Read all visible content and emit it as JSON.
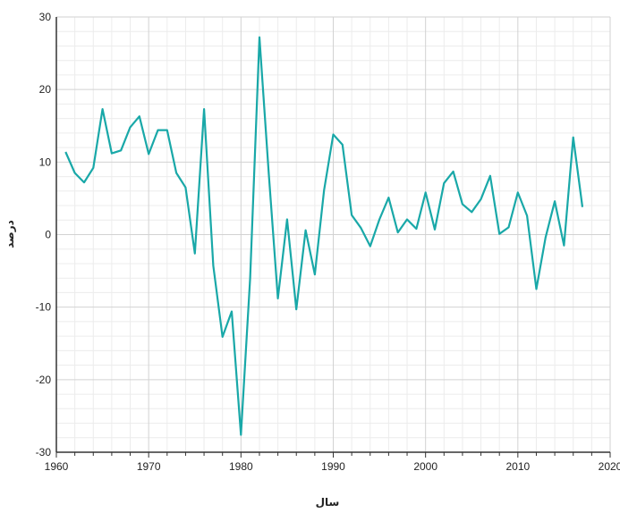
{
  "chart_data": {
    "type": "line",
    "title": "",
    "xlabel": "سال",
    "ylabel": "درصد",
    "xlim": [
      1960,
      2020
    ],
    "ylim": [
      -30,
      30
    ],
    "x_ticks": [
      1960,
      1970,
      1980,
      1990,
      2000,
      2010,
      2020
    ],
    "y_ticks": [
      -30,
      -20,
      -10,
      0,
      10,
      20,
      30
    ],
    "x_tick_labels": [
      "1960",
      "1970",
      "1980",
      "1990",
      "2000",
      "2010",
      "2020"
    ],
    "y_tick_labels": [
      "-30",
      "-20",
      "-10",
      "0",
      "10",
      "20",
      "30"
    ],
    "grid": true,
    "legend": "none",
    "colors": {
      "line": "#19a8a8",
      "grid_major": "#d2d2d2",
      "grid_minor": "#ececec",
      "axis": "#333333"
    },
    "series": [
      {
        "x": [
          1961,
          1962,
          1963,
          1964,
          1965,
          1966,
          1967,
          1968,
          1969,
          1970,
          1971,
          1972,
          1973,
          1974,
          1975,
          1976,
          1977,
          1978,
          1979,
          1980,
          1981,
          1982,
          1983,
          1984,
          1985,
          1986,
          1987,
          1988,
          1989,
          1990,
          1991,
          1992,
          1993,
          1994,
          1995,
          1996,
          1997,
          1998,
          1999,
          2000,
          2001,
          2002,
          2003,
          2004,
          2005,
          2006,
          2007,
          2008,
          2009,
          2010,
          2011,
          2012,
          2013,
          2014,
          2015,
          2016,
          2017
        ],
        "values": [
          11.4,
          8.5,
          7.2,
          9.2,
          17.3,
          11.2,
          11.6,
          14.8,
          16.3,
          11.1,
          14.4,
          14.4,
          8.5,
          6.5,
          -2.6,
          17.3,
          -4.3,
          -14.1,
          -10.6,
          -27.6,
          -6.0,
          27.2,
          8.6,
          -8.8,
          2.1,
          -10.3,
          0.6,
          -5.5,
          6.1,
          13.8,
          12.4,
          2.7,
          0.9,
          -1.6,
          2.1,
          5.1,
          0.3,
          2.1,
          0.8,
          5.8,
          0.7,
          7.1,
          8.7,
          4.2,
          3.1,
          4.9,
          8.1,
          0.1,
          1.0,
          5.8,
          2.6,
          -7.5,
          -0.4,
          4.6,
          -1.5,
          13.4,
          3.8
        ]
      }
    ]
  }
}
